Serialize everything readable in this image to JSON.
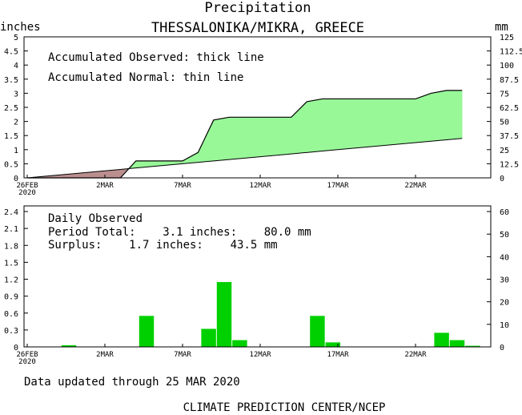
{
  "header": {
    "title": "Precipitation",
    "station": "THESSALONIKA/MIKRA,  GREECE",
    "left_unit": "inches",
    "right_unit": "mm"
  },
  "top_panel": {
    "legend_observed": "Accumulated Observed: thick line",
    "legend_normal": "Accumulated Normal: thin line"
  },
  "bottom_panel": {
    "label": "Daily Observed",
    "period_total": "Period Total:    3.1 inches:    80.0 mm",
    "surplus": "Surplus:    1.7 inches:    43.5 mm"
  },
  "footer": {
    "updated": "Data updated through 25 MAR 2020",
    "credit": "CLIMATE PREDICTION CENTER/NCEP"
  },
  "colors": {
    "surplus_fill": "#98f898",
    "deficit_fill": "#bc8f8f",
    "bar": "#00d000",
    "line": "#000000"
  },
  "chart_data": [
    {
      "type": "area",
      "title": "Precipitation",
      "x": [
        "26FEB",
        "27FEB",
        "28FEB",
        "29FEB",
        "1MAR",
        "2MAR",
        "3MAR",
        "4MAR",
        "5MAR",
        "6MAR",
        "7MAR",
        "8MAR",
        "9MAR",
        "10MAR",
        "11MAR",
        "12MAR",
        "13MAR",
        "14MAR",
        "15MAR",
        "16MAR",
        "17MAR",
        "18MAR",
        "19MAR",
        "20MAR",
        "21MAR",
        "22MAR",
        "23MAR",
        "24MAR",
        "25MAR"
      ],
      "x_ticks": [
        {
          "label": "26FEB",
          "sublabel": "2020",
          "day": 0
        },
        {
          "label": "2MAR",
          "day": 5
        },
        {
          "label": "7MAR",
          "day": 10
        },
        {
          "label": "12MAR",
          "day": 15
        },
        {
          "label": "17MAR",
          "day": 20
        },
        {
          "label": "22MAR",
          "day": 25
        }
      ],
      "ylabel_left": "inches",
      "ylabel_right": "mm",
      "ylim": [
        0,
        5
      ],
      "ylim_right": [
        0,
        125
      ],
      "yticks_left": [
        "0",
        "0.5",
        "1",
        "1.5",
        "2",
        "2.5",
        "3",
        "3.5",
        "4",
        "4.5",
        "5"
      ],
      "yticks_right": [
        "0",
        "12.5",
        "25",
        "37.5",
        "50",
        "62.5",
        "75",
        "87.5",
        "100",
        "112.5",
        "125"
      ],
      "series": [
        {
          "name": "Accumulated Observed",
          "style": "thick",
          "values": [
            0.0,
            0.0,
            0.0,
            0.0,
            0.0,
            0.0,
            0.0,
            0.6,
            0.6,
            0.6,
            0.6,
            0.9,
            2.05,
            2.15,
            2.15,
            2.15,
            2.15,
            2.15,
            2.7,
            2.8,
            2.8,
            2.8,
            2.8,
            2.8,
            2.8,
            2.8,
            3.0,
            3.1,
            3.1
          ]
        },
        {
          "name": "Accumulated Normal",
          "style": "thin",
          "values": [
            0.0,
            0.05,
            0.1,
            0.15,
            0.2,
            0.25,
            0.3,
            0.35,
            0.4,
            0.45,
            0.5,
            0.55,
            0.6,
            0.65,
            0.7,
            0.75,
            0.8,
            0.85,
            0.9,
            0.95,
            1.0,
            1.05,
            1.1,
            1.15,
            1.2,
            1.25,
            1.3,
            1.35,
            1.4
          ]
        }
      ]
    },
    {
      "type": "bar",
      "title": "Daily Observed",
      "x": [
        "26FEB",
        "27FEB",
        "28FEB",
        "29FEB",
        "1MAR",
        "2MAR",
        "3MAR",
        "4MAR",
        "5MAR",
        "6MAR",
        "7MAR",
        "8MAR",
        "9MAR",
        "10MAR",
        "11MAR",
        "12MAR",
        "13MAR",
        "14MAR",
        "15MAR",
        "16MAR",
        "17MAR",
        "18MAR",
        "19MAR",
        "20MAR",
        "21MAR",
        "22MAR",
        "23MAR",
        "24MAR",
        "25MAR"
      ],
      "x_ticks": [
        {
          "label": "26FEB",
          "sublabel": "2020",
          "day": 0
        },
        {
          "label": "2MAR",
          "day": 5
        },
        {
          "label": "7MAR",
          "day": 10
        },
        {
          "label": "12MAR",
          "day": 15
        },
        {
          "label": "17MAR",
          "day": 20
        },
        {
          "label": "22MAR",
          "day": 25
        }
      ],
      "ylim": [
        0,
        2.5
      ],
      "ylim_right": [
        0,
        62.5
      ],
      "yticks_left": [
        "0",
        "0.3",
        "0.6",
        "0.9",
        "1.2",
        "1.5",
        "1.8",
        "2.1",
        "2.4"
      ],
      "yticks_right": [
        "0",
        "10",
        "20",
        "30",
        "40",
        "50",
        "60"
      ],
      "values": [
        0.0,
        0.0,
        0.03,
        0.0,
        0.0,
        0.0,
        0.0,
        0.55,
        0.0,
        0.0,
        0.0,
        0.32,
        1.15,
        0.12,
        0.0,
        0.0,
        0.0,
        0.0,
        0.55,
        0.08,
        0.0,
        0.0,
        0.0,
        0.0,
        0.0,
        0.0,
        0.25,
        0.12,
        0.02
      ]
    }
  ]
}
